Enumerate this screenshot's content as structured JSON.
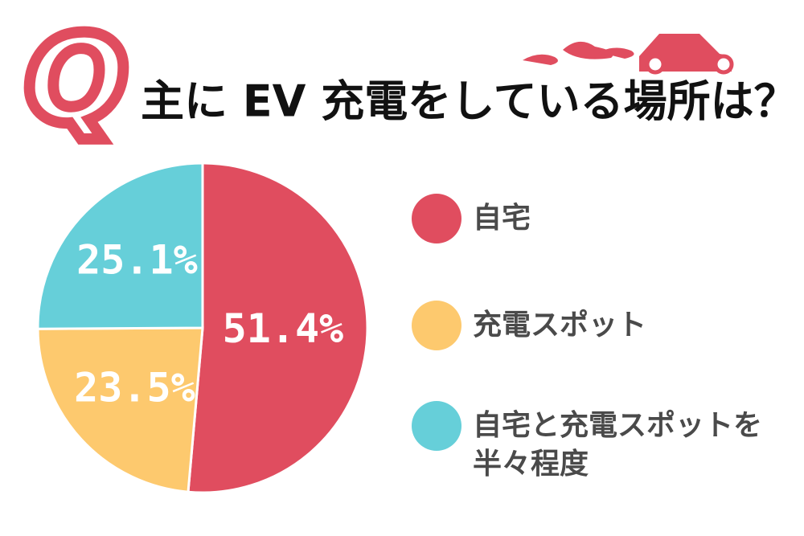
{
  "chart_data": {
    "type": "pie",
    "badge": "Q",
    "title": "主に EV 充電をしている場所は？",
    "categories": [
      "自宅",
      "充電スポット",
      "自宅と充電スポットを半々程度"
    ],
    "values": [
      51.4,
      23.5,
      25.1
    ],
    "value_labels": [
      "51.4%",
      "23.5%",
      "25.1%"
    ],
    "colors": [
      "#e04d5f",
      "#fdc96e",
      "#66cfd9"
    ]
  }
}
